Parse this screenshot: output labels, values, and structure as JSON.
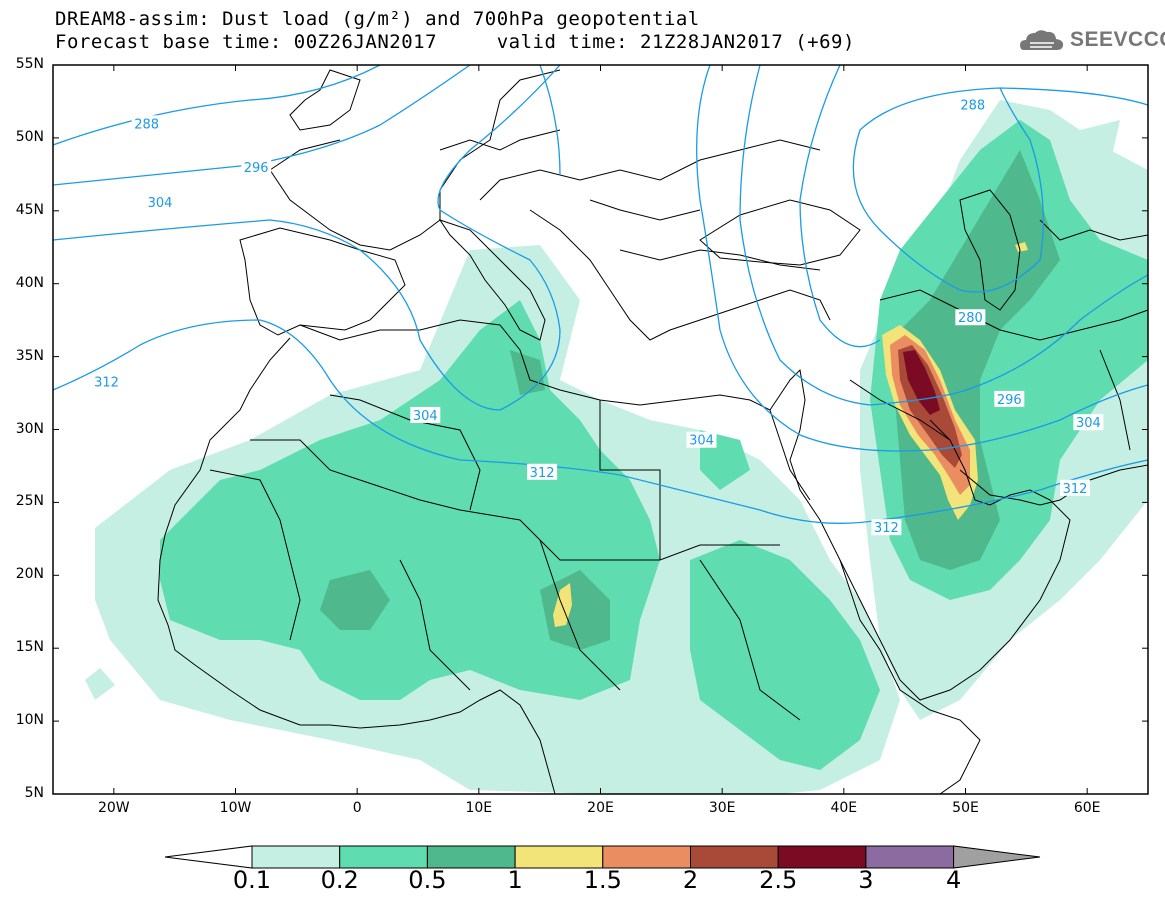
{
  "header": {
    "line1": "DREAM8-assim: Dust load (g/m²) and 700hPa geopotential",
    "line2": "Forecast base time: 00Z26JAN2017     valid time: 21Z28JAN2017 (+69)"
  },
  "logo": {
    "text": "SEEVCCC",
    "icon": "cloud-logo-icon"
  },
  "map": {
    "lon_range": [
      -25,
      65
    ],
    "lat_range": [
      5,
      55
    ],
    "lat_labels": [
      "55N",
      "50N",
      "45N",
      "40N",
      "35N",
      "30N",
      "25N",
      "20N",
      "15N",
      "10N",
      "5N"
    ],
    "lon_labels": [
      "20W",
      "10W",
      "0",
      "10E",
      "20E",
      "30E",
      "40E",
      "50E",
      "60E"
    ]
  },
  "contours": {
    "color": "#1a9be6",
    "labels": [
      {
        "text": "288",
        "lon": -17.3,
        "lat": 51.0
      },
      {
        "text": "296",
        "lon": -8.3,
        "lat": 48.0
      },
      {
        "text": "304",
        "lon": -16.2,
        "lat": 45.6
      },
      {
        "text": "312",
        "lon": -20.6,
        "lat": 33.3
      },
      {
        "text": "304",
        "lon": 5.6,
        "lat": 31.0
      },
      {
        "text": "312",
        "lon": 15.2,
        "lat": 27.1
      },
      {
        "text": "304",
        "lon": 28.3,
        "lat": 29.3
      },
      {
        "text": "312",
        "lon": 43.5,
        "lat": 23.3
      },
      {
        "text": "288",
        "lon": 50.6,
        "lat": 52.3
      },
      {
        "text": "280",
        "lon": 50.4,
        "lat": 37.7
      },
      {
        "text": "296",
        "lon": 53.6,
        "lat": 32.1
      },
      {
        "text": "304",
        "lon": 60.1,
        "lat": 30.5
      },
      {
        "text": "312",
        "lon": 59.0,
        "lat": 26.0
      }
    ]
  },
  "colorbar": {
    "labels": [
      "0.1",
      "0.2",
      "0.5",
      "1",
      "1.5",
      "2",
      "2.5",
      "3",
      "4"
    ],
    "colors": [
      "#c6efe4",
      "#5fdcb0",
      "#4fb88c",
      "#f2e479",
      "#ea8e62",
      "#a94a38",
      "#7a0b23",
      "#8c6ba0"
    ],
    "under_color": "#ffffff",
    "over_color": "#a0a0a0"
  }
}
